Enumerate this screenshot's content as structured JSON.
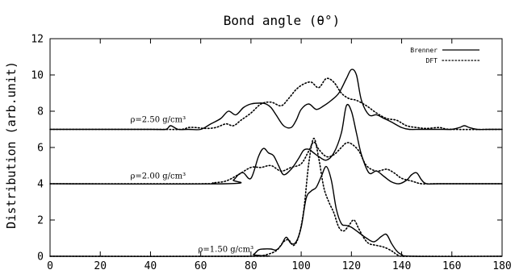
{
  "chart_data": {
    "type": "line",
    "title": "Bond angle (θ°)",
    "xlabel": "",
    "ylabel": "Distribution  (arb.unit)",
    "xlim": [
      0,
      180
    ],
    "ylim": [
      0,
      12
    ],
    "xticks": [
      0,
      20,
      40,
      60,
      80,
      100,
      120,
      140,
      160,
      180
    ],
    "yticks": [
      0,
      2,
      4,
      6,
      8,
      10,
      12
    ],
    "grid": false,
    "legend_position": "top-right",
    "legend": [
      {
        "label": "Brenner",
        "style": "solid"
      },
      {
        "label": "DFT",
        "style": "dotted"
      }
    ],
    "annotations": [
      {
        "text": "ρ=2.50 g/cm³",
        "x": 32,
        "y": 7.4
      },
      {
        "text": "ρ=2.00 g/cm³",
        "x": 32,
        "y": 4.3
      },
      {
        "text": "ρ=1.50 g/cm³",
        "x": 59,
        "y": 0.25
      }
    ],
    "series": [
      {
        "name": "Brenner",
        "group": "ρ=2.50 g/cm³",
        "style": "solid",
        "x": [
          0,
          40,
          46,
          48,
          51,
          55,
          60,
          64,
          68,
          71,
          74,
          77,
          80,
          84,
          86,
          88,
          90,
          93,
          96,
          98,
          100,
          103,
          106,
          109,
          112,
          115,
          118,
          120,
          122,
          124,
          127,
          130,
          133,
          136,
          140,
          143,
          147,
          150,
          155,
          160,
          163,
          165,
          167,
          170,
          175,
          180
        ],
        "y": [
          7,
          7,
          7,
          7.2,
          7,
          7,
          7,
          7.3,
          7.6,
          8.0,
          7.8,
          8.2,
          8.4,
          8.45,
          8.4,
          8.2,
          7.8,
          7.2,
          7.1,
          7.5,
          8.1,
          8.4,
          8.1,
          8.3,
          8.6,
          9.0,
          9.8,
          10.3,
          10.0,
          8.6,
          7.8,
          7.8,
          7.6,
          7.4,
          7.1,
          7,
          7,
          7,
          7,
          7,
          7.1,
          7.2,
          7.1,
          7,
          7,
          7
        ],
        "color": "#000000"
      },
      {
        "name": "DFT",
        "group": "ρ=2.50 g/cm³",
        "style": "dotted",
        "x": [
          0,
          40,
          52,
          55,
          58,
          62,
          66,
          70,
          73,
          76,
          80,
          84,
          88,
          92,
          95,
          98,
          101,
          104,
          107,
          110,
          113,
          116,
          119,
          122,
          126,
          130,
          134,
          138,
          142,
          146,
          150,
          155,
          160,
          180
        ],
        "y": [
          7,
          7,
          7,
          7.1,
          7.1,
          7.05,
          7.1,
          7.3,
          7.2,
          7.5,
          7.9,
          8.4,
          8.5,
          8.3,
          8.7,
          9.2,
          9.5,
          9.6,
          9.3,
          9.8,
          9.6,
          9.0,
          8.7,
          8.6,
          8.3,
          7.9,
          7.6,
          7.5,
          7.2,
          7.1,
          7.05,
          7.1,
          7,
          7
        ],
        "color": "#000000"
      },
      {
        "name": "Brenner",
        "group": "ρ=2.00 g/cm³",
        "style": "solid",
        "x": [
          0,
          70,
          73,
          75,
          77,
          80,
          83,
          85,
          87,
          89,
          91,
          93,
          96,
          99,
          101,
          103,
          105,
          107,
          110,
          113,
          116,
          118,
          120,
          122,
          124,
          127,
          130,
          133,
          136,
          139,
          142,
          144,
          146,
          148,
          150,
          155,
          180
        ],
        "y": [
          4,
          4,
          4.2,
          4.5,
          4.6,
          4.3,
          5.5,
          5.95,
          5.7,
          5.55,
          5.0,
          4.5,
          4.8,
          5.4,
          5.85,
          5.9,
          5.7,
          5.5,
          5.3,
          5.7,
          6.8,
          8.3,
          8.0,
          6.8,
          5.6,
          4.6,
          4.7,
          4.4,
          4.1,
          4.0,
          4.2,
          4.5,
          4.6,
          4.2,
          4.0,
          4,
          4
        ],
        "color": "#000000"
      },
      {
        "name": "DFT",
        "group": "ρ=2.00 g/cm³",
        "style": "dotted",
        "x": [
          0,
          60,
          65,
          70,
          75,
          80,
          84,
          88,
          92,
          96,
          100,
          103,
          105,
          107,
          110,
          113,
          116,
          118,
          120,
          123,
          126,
          130,
          134,
          137,
          140,
          144,
          148,
          155,
          180
        ],
        "y": [
          4,
          4,
          4.05,
          4.15,
          4.5,
          4.9,
          4.9,
          5.0,
          4.7,
          4.9,
          5.1,
          5.8,
          6.3,
          5.9,
          5.5,
          5.6,
          6.0,
          6.25,
          6.2,
          5.8,
          5.0,
          4.7,
          4.8,
          4.6,
          4.3,
          4.15,
          4.0,
          4,
          4
        ],
        "color": "#000000"
      },
      {
        "name": "Brenner",
        "group": "ρ=1.50 g/cm³",
        "style": "solid",
        "x": [
          0,
          78,
          81,
          83,
          85,
          88,
          90,
          92,
          94,
          96,
          98,
          100,
          102,
          104,
          106,
          108,
          110,
          112,
          114,
          116,
          118,
          120,
          123,
          126,
          129,
          132,
          134,
          136,
          138,
          140,
          145,
          180
        ],
        "y": [
          0,
          0,
          0.1,
          0.35,
          0.4,
          0.4,
          0.35,
          0.6,
          1.05,
          0.7,
          0.8,
          1.6,
          3.2,
          3.6,
          3.8,
          4.4,
          4.95,
          4.2,
          2.6,
          1.8,
          1.7,
          1.6,
          1.3,
          1.0,
          0.8,
          1.1,
          1.2,
          0.7,
          0.3,
          0.1,
          0,
          0
        ],
        "color": "#000000"
      },
      {
        "name": "DFT",
        "group": "ρ=1.50 g/cm³",
        "style": "dotted",
        "x": [
          0,
          80,
          85,
          90,
          93,
          95,
          97,
          99,
          101,
          103,
          105,
          107,
          109,
          111,
          113,
          115,
          117,
          119,
          121,
          123,
          125,
          127,
          130,
          133,
          136,
          138,
          140,
          145,
          180
        ],
        "y": [
          0,
          0,
          0.05,
          0.3,
          0.8,
          0.9,
          0.6,
          1.1,
          2.5,
          5.1,
          6.5,
          5.4,
          3.8,
          3.0,
          2.4,
          1.6,
          1.4,
          1.7,
          2.0,
          1.5,
          1.0,
          0.7,
          0.6,
          0.5,
          0.3,
          0.1,
          0.0,
          0,
          0
        ],
        "color": "#000000"
      }
    ]
  }
}
